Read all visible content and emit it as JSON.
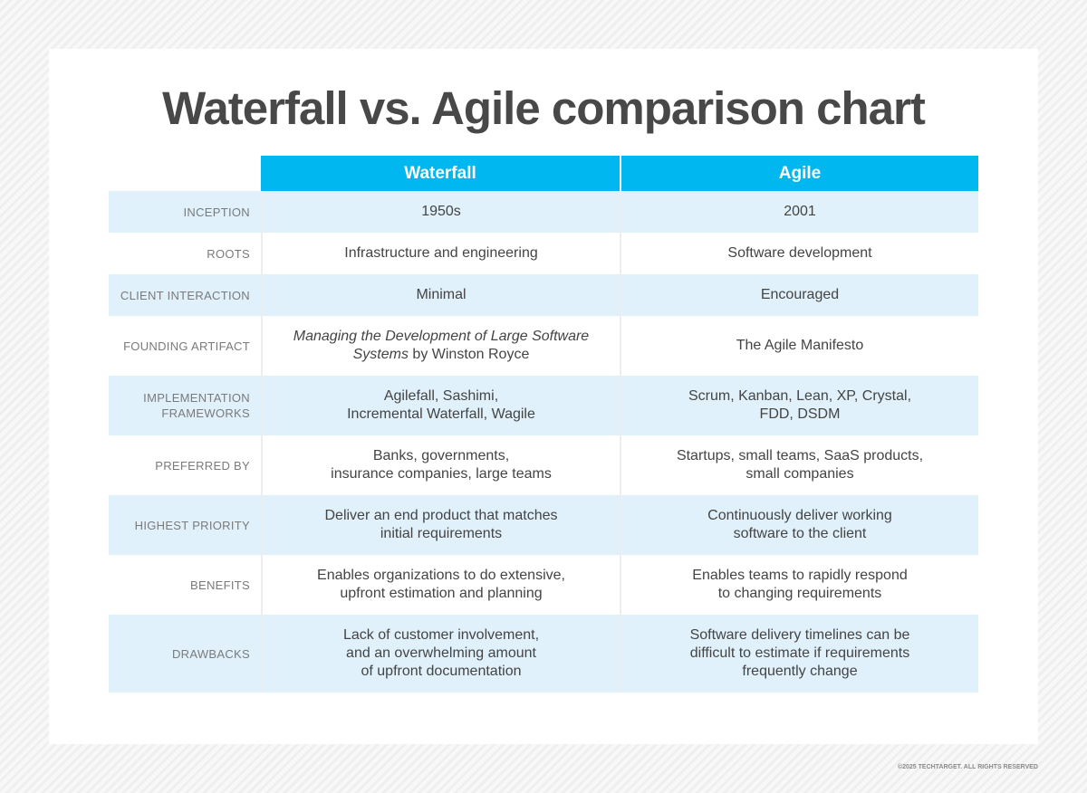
{
  "title": "Waterfall vs. Agile comparison chart",
  "columns": [
    "Waterfall",
    "Agile"
  ],
  "rows": [
    {
      "label": "INCEPTION",
      "waterfall": "1950s",
      "agile": "2001"
    },
    {
      "label": "ROOTS",
      "waterfall": "Infrastructure and engineering",
      "agile": "Software development"
    },
    {
      "label": "CLIENT INTERACTION",
      "waterfall": "Minimal",
      "agile": "Encouraged"
    },
    {
      "label": "FOUNDING ARTIFACT",
      "waterfall_italic": "Managing the Development of Large Software Systems",
      "waterfall_suffix": " by Winston Royce",
      "agile": "The Agile Manifesto"
    },
    {
      "label": "IMPLEMENTATION FRAMEWORKS",
      "waterfall": "Agilefall, Sashimi,\nIncremental Waterfall, Wagile",
      "agile": "Scrum, Kanban, Lean, XP, Crystal,\nFDD, DSDM"
    },
    {
      "label": "PREFERRED BY",
      "waterfall": "Banks, governments,\ninsurance companies, large teams",
      "agile": "Startups, small teams, SaaS products,\nsmall companies"
    },
    {
      "label": "HIGHEST PRIORITY",
      "waterfall": "Deliver an end product that matches\ninitial requirements",
      "agile": "Continuously deliver working\nsoftware to the client"
    },
    {
      "label": "BENEFITS",
      "waterfall": "Enables organizations to do extensive,\nupfront estimation and planning",
      "agile": "Enables teams to rapidly respond\nto changing requirements"
    },
    {
      "label": "DRAWBACKS",
      "waterfall": "Lack of customer involvement,\nand an overwhelming amount\nof upfront documentation",
      "agile": "Software delivery timelines can be\ndifficult to estimate if requirements\nfrequently change"
    }
  ],
  "copyright": "©2025 TECHTARGET. ALL RIGHTS RESERVED",
  "colors": {
    "header": "#00b7ef",
    "alt_row": "#e0f1fb",
    "title": "#484848"
  }
}
